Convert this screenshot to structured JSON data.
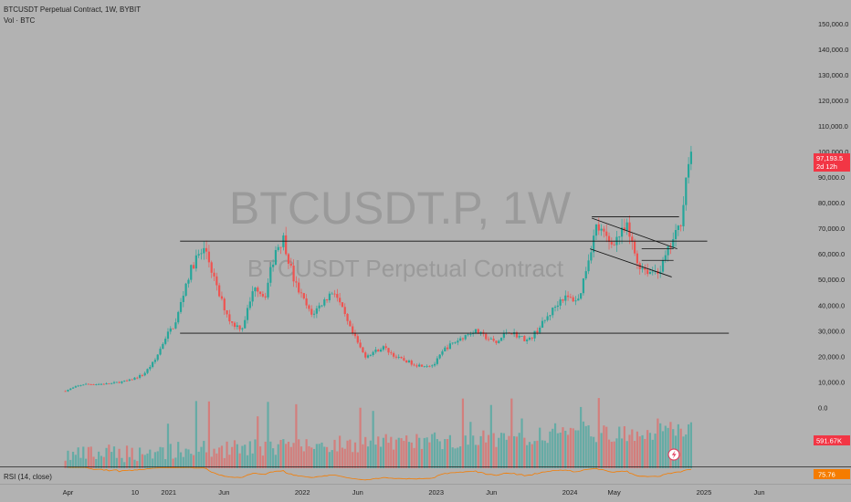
{
  "header": {
    "symbol_title": "BTCUSDT Perpetual Contract, 1W, BYBIT",
    "volume_label": "Vol · BTC",
    "rsi_label": "RSI (14, close)"
  },
  "watermark": {
    "ticker": "BTCUSDT.P, 1W",
    "name": "BTCUSDT Perpetual Contract"
  },
  "price_badge": {
    "value": "97,193.5",
    "countdown": "2d 12h"
  },
  "volume_badge": "591.67K",
  "rsi_badge": "75.76",
  "colors": {
    "background": "#b2b2b2",
    "up": "#26a69a",
    "down": "#ef5350",
    "rsi_line": "#f57c00",
    "badge_red": "#f23645",
    "badge_orange": "#f57c00"
  },
  "chart_data": {
    "type": "candlestick",
    "timeframe": "1W",
    "price_axis": {
      "ticks": [
        150000,
        140000,
        130000,
        120000,
        110000,
        100000,
        90000,
        80000,
        70000,
        60000,
        50000,
        40000,
        30000,
        20000,
        10000,
        0
      ],
      "tick_labels": [
        "150,000.0",
        "140,000.0",
        "130,000.0",
        "120,000.0",
        "110,000.0",
        "100,000.0",
        "90,000.0",
        "80,000.0",
        "70,000.0",
        "60,000.0",
        "50,000.0",
        "40,000.0",
        "30,000.0",
        "20,000.0",
        "10,000.0",
        "0.0"
      ],
      "ylim": [
        -22000,
        155000
      ]
    },
    "time_axis": {
      "ticks": [
        "2020-04-01",
        "2020-10-01",
        "2021-01-01",
        "2021-06-01",
        "2022-01-01",
        "2022-06-01",
        "2023-01-01",
        "2023-06-01",
        "2024-01-01",
        "2024-05-01",
        "2025-01-01",
        "2025-06-01"
      ],
      "tick_labels": [
        "Apr",
        "10",
        "2021",
        "Jun",
        "2022",
        "Jun",
        "2023",
        "Jun",
        "2024",
        "May",
        "2025",
        "Jun"
      ],
      "range": [
        "2020-03-01",
        "2025-08-01"
      ]
    },
    "price_keypoints": [
      [
        "2020-03-25",
        6500
      ],
      [
        "2020-05-10",
        9000
      ],
      [
        "2020-07-20",
        9200
      ],
      [
        "2020-09-15",
        10500
      ],
      [
        "2020-10-25",
        13000
      ],
      [
        "2020-11-25",
        18500
      ],
      [
        "2020-12-25",
        28000
      ],
      [
        "2021-01-20",
        33000
      ],
      [
        "2021-02-20",
        50000
      ],
      [
        "2021-03-15",
        58000
      ],
      [
        "2021-04-12",
        62000
      ],
      [
        "2021-05-15",
        45000
      ],
      [
        "2021-06-20",
        33000
      ],
      [
        "2021-07-20",
        31000
      ],
      [
        "2021-08-25",
        48000
      ],
      [
        "2021-09-20",
        43000
      ],
      [
        "2021-10-20",
        62000
      ],
      [
        "2021-11-10",
        66000
      ],
      [
        "2021-12-10",
        49000
      ],
      [
        "2022-01-25",
        36000
      ],
      [
        "2022-03-28",
        46000
      ],
      [
        "2022-05-10",
        31000
      ],
      [
        "2022-06-20",
        20000
      ],
      [
        "2022-08-10",
        23500
      ],
      [
        "2022-09-15",
        19500
      ],
      [
        "2022-11-10",
        16500
      ],
      [
        "2022-12-25",
        16500
      ],
      [
        "2023-01-25",
        23000
      ],
      [
        "2023-03-20",
        28000
      ],
      [
        "2023-04-15",
        30000
      ],
      [
        "2023-06-15",
        25000
      ],
      [
        "2023-07-15",
        30000
      ],
      [
        "2023-09-10",
        26000
      ],
      [
        "2023-10-25",
        34000
      ],
      [
        "2023-12-10",
        43000
      ],
      [
        "2024-01-25",
        42000
      ],
      [
        "2024-02-25",
        61000
      ],
      [
        "2024-03-14",
        71000
      ],
      [
        "2024-04-20",
        64000
      ],
      [
        "2024-06-05",
        70000
      ],
      [
        "2024-07-05",
        56000
      ],
      [
        "2024-08-05",
        53000
      ],
      [
        "2024-09-05",
        54000
      ],
      [
        "2024-10-01",
        63000
      ],
      [
        "2024-10-28",
        71000
      ],
      [
        "2024-11-12",
        88000
      ],
      [
        "2024-11-22",
        98000
      ],
      [
        "2024-11-27",
        97193
      ]
    ],
    "volume_scale_max": 10000,
    "rsi_range": [
      0,
      100
    ],
    "last_price": 97193.5,
    "last_volume": "591.67K",
    "last_rsi": 75.76,
    "annotations": [
      {
        "type": "hline",
        "y": 65000,
        "from": "2021-02-01",
        "to": "2025-01-10"
      },
      {
        "type": "hline",
        "y": 29000,
        "from": "2021-02-01",
        "to": "2025-03-10"
      },
      {
        "type": "segment",
        "from": [
          "2024-03-01",
          74500
        ],
        "to": [
          "2024-10-25",
          74500
        ]
      },
      {
        "type": "segment",
        "from": [
          "2024-03-01",
          74000
        ],
        "to": [
          "2024-10-20",
          62000
        ]
      },
      {
        "type": "segment",
        "from": [
          "2024-02-25",
          62000
        ],
        "to": [
          "2024-10-05",
          51000
        ]
      },
      {
        "type": "segment",
        "from": [
          "2024-07-15",
          62000
        ],
        "to": [
          "2024-10-10",
          62000
        ]
      },
      {
        "type": "segment",
        "from": [
          "2024-07-15",
          57500
        ],
        "to": [
          "2024-10-10",
          57500
        ]
      }
    ],
    "grid": false
  }
}
